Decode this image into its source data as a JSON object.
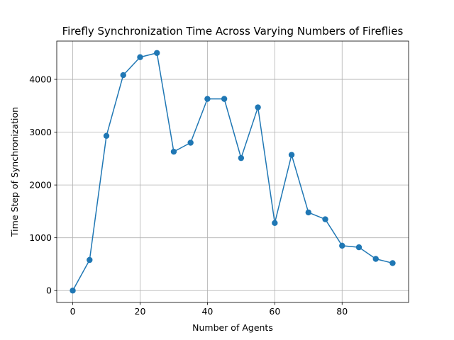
{
  "chart_data": {
    "type": "line",
    "title": "Firefly Synchronization Time Across Varying Numbers of Fireflies",
    "xlabel": "Number of Agents",
    "ylabel": "Time Step of Synchronization",
    "x": [
      0,
      5,
      10,
      15,
      20,
      25,
      30,
      35,
      40,
      45,
      50,
      55,
      60,
      65,
      70,
      75,
      80,
      85,
      90,
      95
    ],
    "series": [
      {
        "values": [
          0,
          580,
          2930,
          4080,
          4420,
          4500,
          2630,
          2800,
          3630,
          3630,
          2510,
          3470,
          1280,
          2570,
          1480,
          1350,
          850,
          820,
          600,
          520
        ],
        "color": "#1f77b4",
        "marker": "circle"
      }
    ],
    "xlim": [
      -4.75,
      99.75
    ],
    "ylim": [
      -225,
      4725
    ],
    "xticks": [
      0,
      20,
      40,
      60,
      80
    ],
    "yticks": [
      0,
      1000,
      2000,
      3000,
      4000
    ],
    "grid": true,
    "legend": "none"
  }
}
